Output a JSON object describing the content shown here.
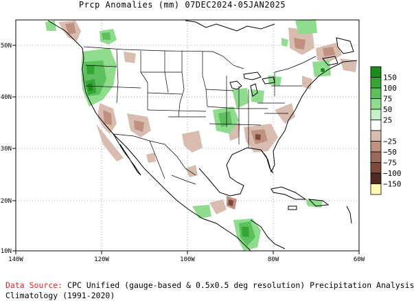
{
  "title": "Prcp Anomalies (mm) 07DEC2024-05JAN2025",
  "map": {
    "lon_ticks": [
      "140W",
      "120W",
      "100W",
      "80W",
      "60W"
    ],
    "lat_ticks": [
      "50N",
      "40N",
      "30N",
      "20N",
      "10N"
    ],
    "grid": "dotted"
  },
  "legend": {
    "entries": [
      {
        "label": "150",
        "color": "#1a8c1a"
      },
      {
        "label": "100",
        "color": "#36a536"
      },
      {
        "label": "75",
        "color": "#5cc05c"
      },
      {
        "label": "50",
        "color": "#8fdc8f"
      },
      {
        "label": "25",
        "color": "#c8f0c8"
      },
      {
        "label": "",
        "color": "#ffffff"
      },
      {
        "label": "−25",
        "color": "#d8bcb0"
      },
      {
        "label": "−50",
        "color": "#c09080"
      },
      {
        "label": "−75",
        "color": "#9c6a5a"
      },
      {
        "label": "−100",
        "color": "#7a4a3a"
      },
      {
        "label": "−150",
        "color": "#502a20"
      },
      {
        "label": "",
        "color": "#fff8b0"
      }
    ]
  },
  "footer": {
    "source_label": "Data Source:",
    "source_text": " CPC Unified (gauge-based & 0.5x0.5 deg resolution) Precipitation Analysis",
    "climatology": "Climatology (1991-2020)"
  }
}
